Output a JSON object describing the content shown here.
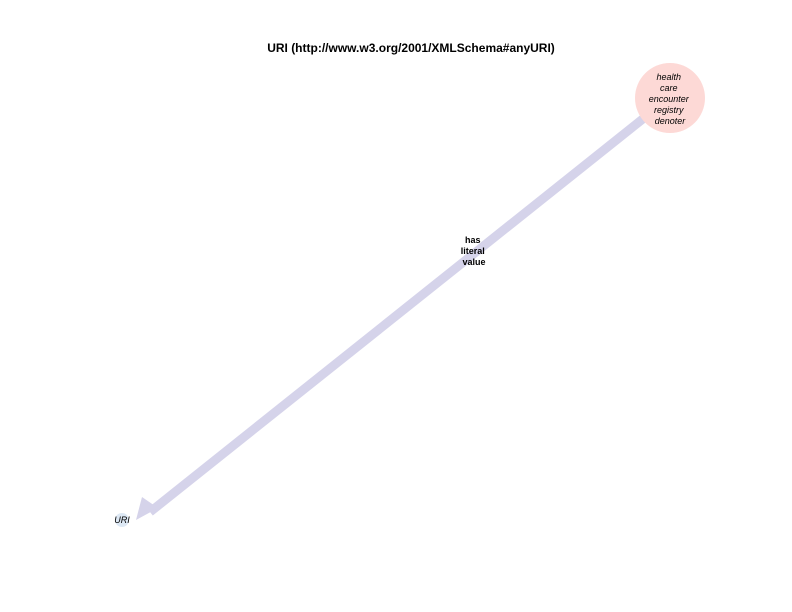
{
  "title": "URI (http://www.w3.org/2001/XMLSchema#anyURI)",
  "nodes": {
    "source": {
      "lines": [
        "health",
        "care",
        "encounter",
        "registry",
        "denoter"
      ],
      "color": "#fdd9d6"
    },
    "target": {
      "label": "URI",
      "color": "#dde8f4"
    }
  },
  "edge": {
    "lines": [
      "has",
      "literal",
      "value"
    ],
    "color": "#d5d3ea"
  }
}
